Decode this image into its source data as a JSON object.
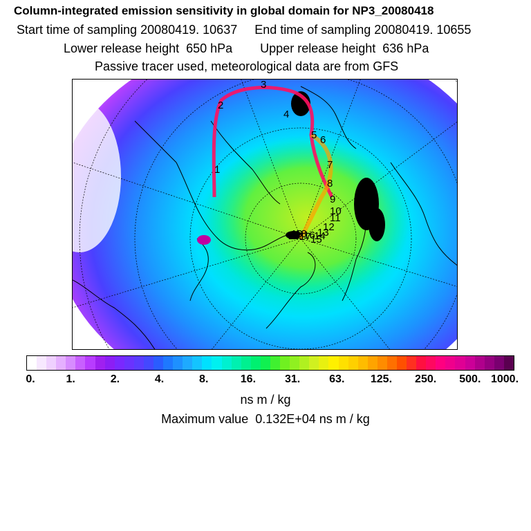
{
  "header": {
    "title": "Column-integrated emission sensitivity in global domain for NP3_20080418",
    "line1": "Start time of sampling 20080419. 10637     End time of sampling 20080419. 10655",
    "line2": "Lower release height  650 hPa        Upper release height  636 hPa",
    "line3": "Passive tracer used, meteorological data are from GFS"
  },
  "map": {
    "projection": "polar-stereographic",
    "track_labels": [
      "1",
      "2",
      "3",
      "4",
      "5",
      "6",
      "7",
      "8",
      "9",
      "10",
      "11",
      "12",
      "13",
      "14",
      "15",
      "16",
      "17",
      "18",
      "19",
      "20"
    ],
    "colors": {
      "track": "#ff1060",
      "land_outline": "#000000",
      "graticule": "#000000"
    }
  },
  "colorbar": {
    "tick_labels": [
      "0.",
      "1.",
      "2.",
      "4.",
      "8.",
      "16.",
      "31.",
      "63.",
      "125.",
      "250.",
      "500.",
      "1000."
    ],
    "colors": [
      "#ffffff",
      "#f7e8ff",
      "#efd0ff",
      "#e5b0ff",
      "#d78cff",
      "#c860ff",
      "#b83cff",
      "#a020f0",
      "#8c1ef5",
      "#7a28ff",
      "#6a32ff",
      "#5a3cff",
      "#4448ff",
      "#2a5cff",
      "#1e78ff",
      "#1e90ff",
      "#1eaaff",
      "#14c4ff",
      "#00e0ff",
      "#00f0f0",
      "#00f0d0",
      "#00f0b0",
      "#00f090",
      "#00f070",
      "#10f050",
      "#40f030",
      "#70f020",
      "#90f020",
      "#b0f020",
      "#d0f020",
      "#e8f010",
      "#fff000",
      "#ffe000",
      "#ffd000",
      "#ffbc00",
      "#ffa400",
      "#ff8c00",
      "#ff7000",
      "#ff5000",
      "#ff3020",
      "#ff1040",
      "#ff0860",
      "#ff0080",
      "#f0008c",
      "#e00094",
      "#cc0098",
      "#b0008c",
      "#960080",
      "#7a0070",
      "#5a0050"
    ],
    "units": "ns m / kg"
  },
  "max_value": "Maximum value  0.132E+04 ns m / kg"
}
